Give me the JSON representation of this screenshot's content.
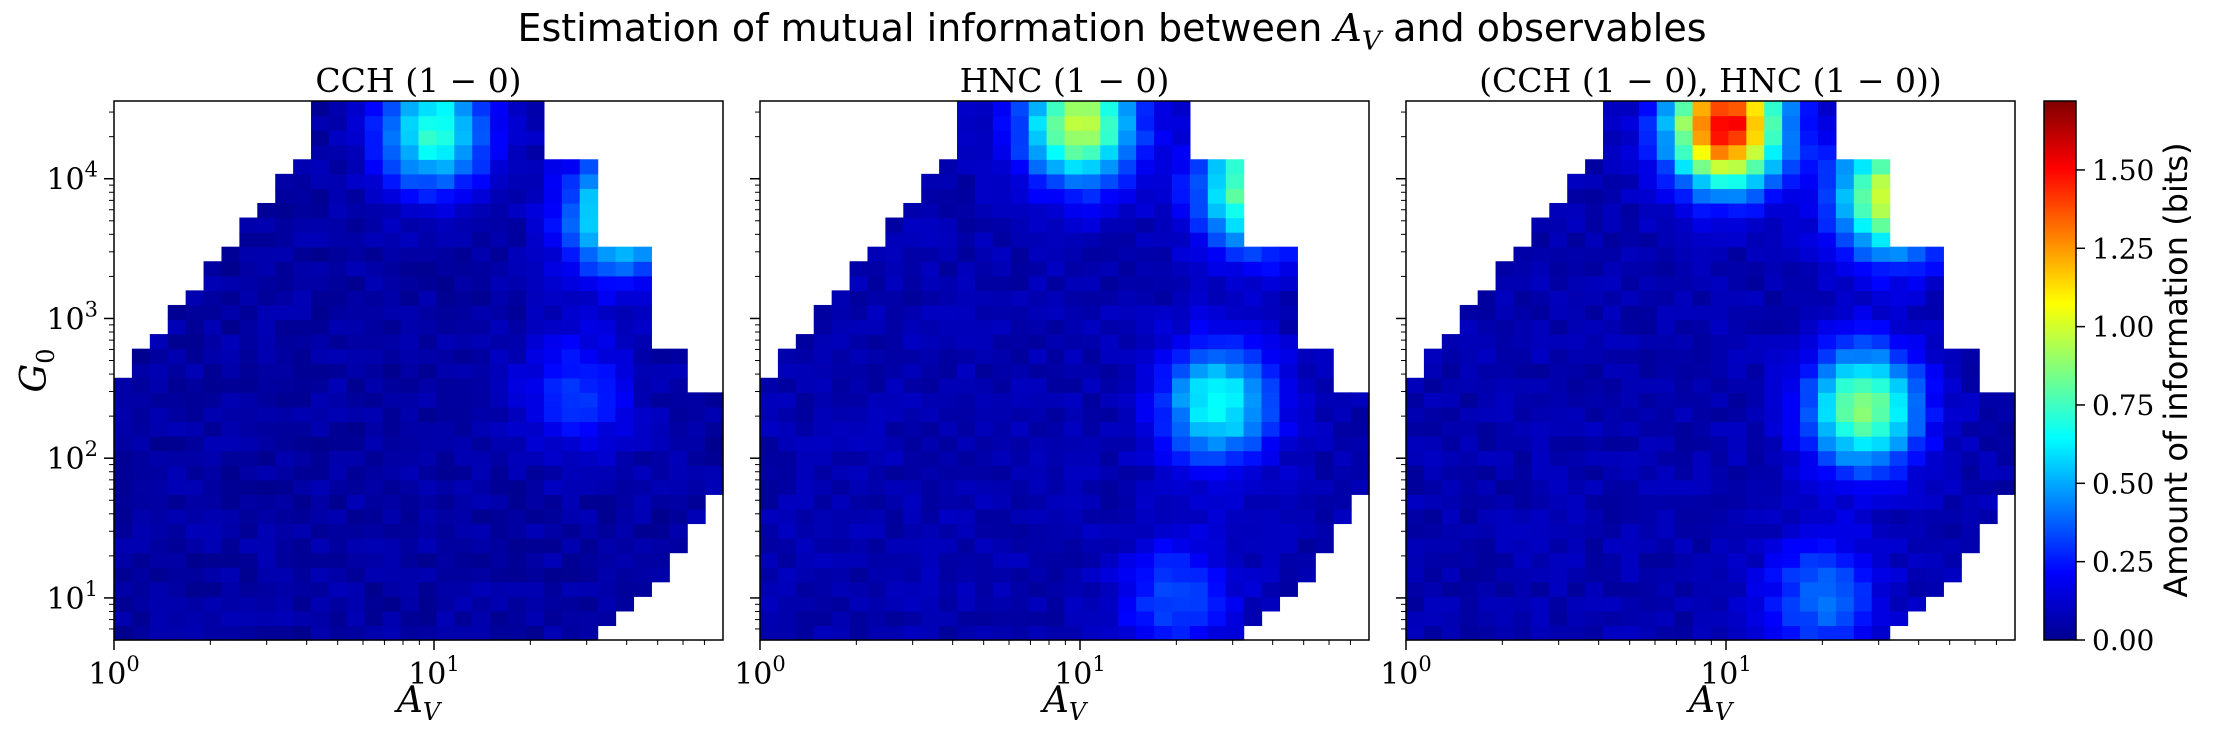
{
  "title": {
    "prefix": "Estimation of mutual information between ",
    "var": "A",
    "var_sub": "V",
    "suffix": " and observables"
  },
  "colorbar": {
    "label": "Amount of information (bits)",
    "range": [
      0,
      1.72
    ],
    "ticks": [
      0.0,
      0.25,
      0.5,
      0.75,
      1.0,
      1.25,
      1.5
    ],
    "tick_labels": [
      "0.00",
      "0.25",
      "0.50",
      "0.75",
      "1.00",
      "1.25",
      "1.50"
    ],
    "colormap": "jet"
  },
  "chart_data": [
    {
      "type": "heatmap",
      "title": "CCH (1 − 0)",
      "xlabel": "A_V",
      "ylabel": "G_0",
      "xscale": "log",
      "yscale": "log",
      "xlim": [
        1,
        80
      ],
      "ylim": [
        5,
        36000
      ],
      "x_ticks": [
        1,
        10
      ],
      "x_tick_labels": [
        "10^0",
        "10^1"
      ],
      "y_ticks": [
        10,
        100,
        1000,
        10000
      ],
      "y_tick_labels": [
        "10^1",
        "10^2",
        "10^3",
        "10^4"
      ],
      "hotspots": [
        {
          "x": 10,
          "y": 22000,
          "value": 0.72
        },
        {
          "x": 38,
          "y": 5500,
          "value": 0.78
        },
        {
          "x": 28,
          "y": 300,
          "value": 0.3
        }
      ],
      "baseline": 0.06
    },
    {
      "type": "heatmap",
      "title": "HNC (1 − 0)",
      "xlabel": "A_V",
      "ylabel": "",
      "xscale": "log",
      "yscale": "log",
      "xlim": [
        1,
        80
      ],
      "ylim": [
        5,
        36000
      ],
      "x_ticks": [
        1,
        10
      ],
      "x_tick_labels": [
        "10^0",
        "10^1"
      ],
      "y_ticks": [
        10,
        100,
        1000,
        10000
      ],
      "y_tick_labels": [
        "",
        "",
        "",
        ""
      ],
      "hotspots": [
        {
          "x": 10,
          "y": 25000,
          "value": 0.98
        },
        {
          "x": 35,
          "y": 8500,
          "value": 0.88
        },
        {
          "x": 27,
          "y": 250,
          "value": 0.68
        },
        {
          "x": 20,
          "y": 10,
          "value": 0.35
        }
      ],
      "baseline": 0.08
    },
    {
      "type": "heatmap",
      "title": "(CCH (1 − 0), HNC (1 − 0))",
      "xlabel": "A_V",
      "ylabel": "",
      "xscale": "log",
      "yscale": "log",
      "xlim": [
        1,
        80
      ],
      "ylim": [
        5,
        36000
      ],
      "x_ticks": [
        1,
        10
      ],
      "x_tick_labels": [
        "10^0",
        "10^1"
      ],
      "y_ticks": [
        10,
        100,
        1000,
        10000
      ],
      "y_tick_labels": [
        "",
        "",
        "",
        ""
      ],
      "hotspots": [
        {
          "x": 10,
          "y": 24000,
          "value": 1.55
        },
        {
          "x": 33,
          "y": 7500,
          "value": 1.02
        },
        {
          "x": 27,
          "y": 230,
          "value": 0.88
        },
        {
          "x": 20,
          "y": 10,
          "value": 0.4
        }
      ],
      "baseline": 0.08
    }
  ]
}
